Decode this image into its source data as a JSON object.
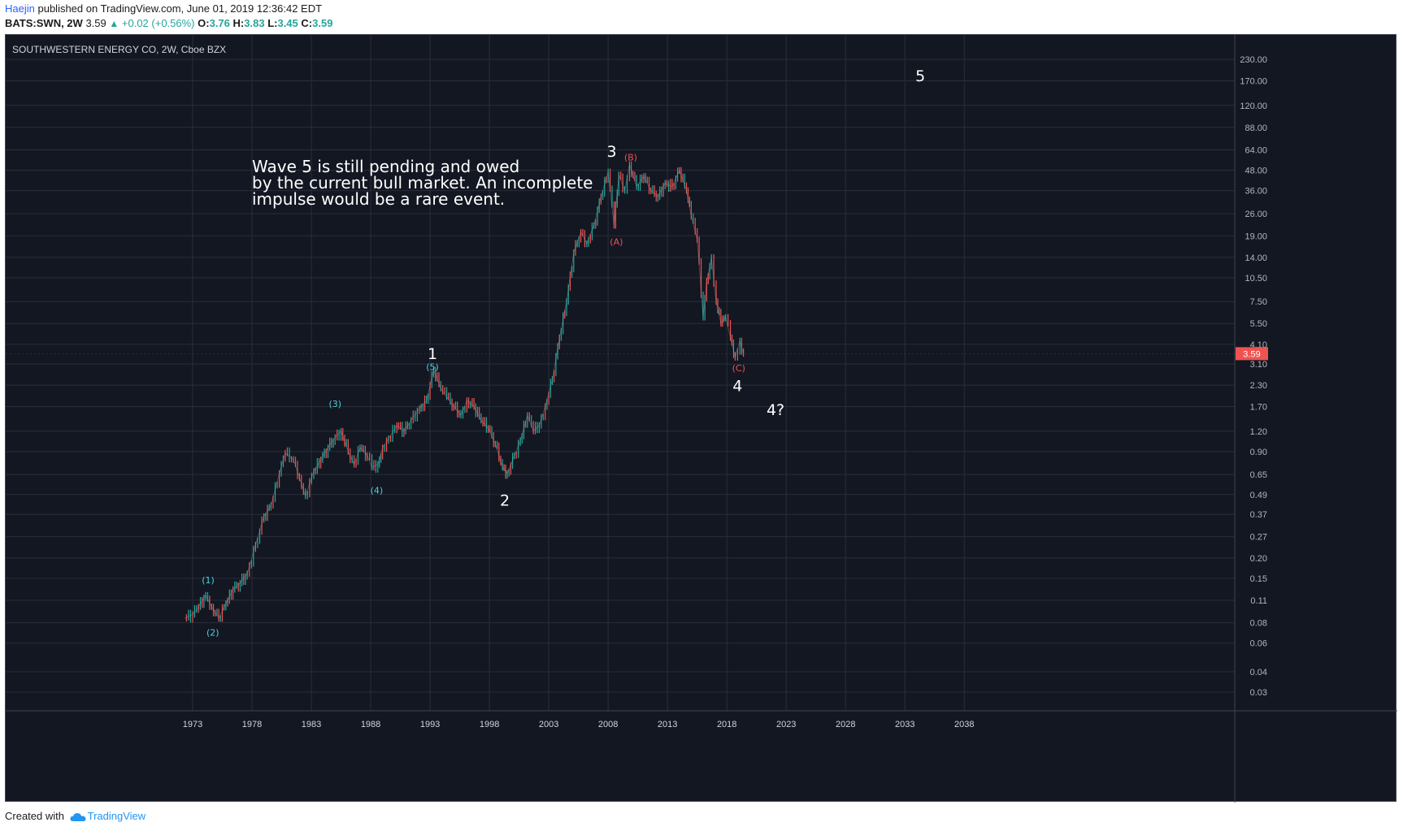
{
  "header": {
    "author": "Haejin",
    "published_text": "published on TradingView.com, June 01, 2019 12:36:42 EDT",
    "symbol": "BATS:SWN, 2W",
    "last": "3.59",
    "change": "+0.02 (+0.56%)",
    "o_label": "O:",
    "o_value": "3.76",
    "h_label": "H:",
    "h_value": "3.83",
    "l_label": "L:",
    "l_value": "3.45",
    "c_label": "C:",
    "c_value": "3.59"
  },
  "chart_title": "SOUTHWESTERN ENERGY CO, 2W, Cboe BZX",
  "footer": {
    "created_with": "Created with",
    "brand": "TradingView"
  },
  "colors": {
    "background": "#131722",
    "grid": "#2a2e39",
    "axis_text": "#b2b5be",
    "candle_up": "#26a69a",
    "candle_down": "#ef5350",
    "price_label_bg": "#ef5350",
    "wave_white": "#ffffff",
    "wave_cyan": "#4dd0e1",
    "wave_red": "#ef5350"
  },
  "chart_data": {
    "type": "line",
    "title": "SOUTHWESTERN ENERGY CO, 2W, Cboe BZX",
    "y_scale": "log",
    "ylim": [
      0.025,
      260
    ],
    "xlim": [
      1969.6,
      2056.6
    ],
    "x_ticks": [
      "1973",
      "1978",
      "1983",
      "1988",
      "1993",
      "1998",
      "2003",
      "2008",
      "2013",
      "2018",
      "2023",
      "2028",
      "2033",
      "2038"
    ],
    "y_ticks": [
      "230.00",
      "170.00",
      "120.00",
      "88.00",
      "64.00",
      "48.00",
      "36.00",
      "26.00",
      "19.00",
      "14.00",
      "10.50",
      "7.50",
      "5.50",
      "4.10",
      "3.10",
      "2.30",
      "1.70",
      "1.20",
      "0.90",
      "0.65",
      "0.49",
      "0.37",
      "0.27",
      "0.20",
      "0.15",
      "0.11",
      "0.08",
      "0.06",
      "0.04",
      "0.03"
    ],
    "last_price": "3.59",
    "series": [
      {
        "name": "",
        "x": [
          1972.3,
          1973.0,
          1973.5,
          1974.1,
          1974.6,
          1975.2,
          1975.8,
          1976.4,
          1977.0,
          1977.6,
          1978.3,
          1979.0,
          1979.6,
          1980.3,
          1980.8,
          1981.5,
          1982.0,
          1982.5,
          1983.2,
          1983.8,
          1984.4,
          1985.0,
          1985.5,
          1986.1,
          1986.6,
          1987.1,
          1987.7,
          1988.1,
          1988.6,
          1989.0,
          1989.5,
          1990.2,
          1990.8,
          1991.4,
          1992.1,
          1992.7,
          1993.3,
          1993.9,
          1994.4,
          1995.0,
          1995.6,
          1996.1,
          1996.7,
          1997.3,
          1997.9,
          1998.5,
          1999.1,
          1999.5,
          2000.1,
          2000.6,
          2001.2,
          2001.7,
          2002.2,
          2002.7,
          2003.3,
          2003.9,
          2004.5,
          2005.1,
          2005.7,
          2006.2,
          2006.8,
          2007.4,
          2008.0,
          2008.5,
          2008.9,
          2009.4,
          2009.8,
          2010.4,
          2011.0,
          2011.6,
          2012.2,
          2012.8,
          2013.4,
          2014.0,
          2014.6,
          2015.0,
          2015.5,
          2016.0,
          2016.3,
          2016.7,
          2017.1,
          2017.5,
          2017.9,
          2018.3,
          2018.7,
          2019.1,
          2019.4
        ],
        "values": [
          0.085,
          0.09,
          0.1,
          0.118,
          0.1,
          0.085,
          0.105,
          0.128,
          0.14,
          0.16,
          0.24,
          0.36,
          0.42,
          0.66,
          0.88,
          0.8,
          0.62,
          0.48,
          0.68,
          0.8,
          0.95,
          1.1,
          1.2,
          0.9,
          0.75,
          0.95,
          0.85,
          0.72,
          0.75,
          0.95,
          1.08,
          1.3,
          1.2,
          1.4,
          1.65,
          1.85,
          2.85,
          2.2,
          1.95,
          1.7,
          1.5,
          1.85,
          1.7,
          1.4,
          1.25,
          1.0,
          0.72,
          0.66,
          0.85,
          1.05,
          1.5,
          1.2,
          1.3,
          1.7,
          2.5,
          4.5,
          7.5,
          15,
          20,
          17,
          22,
          33,
          47,
          22,
          45,
          36,
          52,
          38,
          44,
          36,
          33,
          40,
          38,
          48,
          36,
          25,
          18,
          6.0,
          10,
          14,
          7.5,
          5.5,
          6.0,
          4.5,
          3.4,
          4.3,
          3.59
        ]
      }
    ],
    "annotations": [
      {
        "text": "(1)",
        "x": 1974.3,
        "y": 0.145,
        "color": "cyan"
      },
      {
        "text": "(2)",
        "x": 1974.7,
        "y": 0.069,
        "color": "cyan"
      },
      {
        "text": "(3)",
        "x": 1985.0,
        "y": 1.75,
        "color": "cyan"
      },
      {
        "text": "(4)",
        "x": 1988.5,
        "y": 0.515,
        "color": "cyan"
      },
      {
        "text": "(5)",
        "x": 1993.2,
        "y": 2.95,
        "color": "cyan"
      },
      {
        "text": "1",
        "x": 1993.2,
        "y": 3.55,
        "color": "white"
      },
      {
        "text": "2",
        "x": 1999.3,
        "y": 0.445,
        "color": "white"
      },
      {
        "text": "3",
        "x": 2008.3,
        "y": 62,
        "color": "white"
      },
      {
        "text": "(A)",
        "x": 2008.7,
        "y": 17.3,
        "color": "red"
      },
      {
        "text": "(B)",
        "x": 2009.9,
        "y": 57,
        "color": "red"
      },
      {
        "text": "(C)",
        "x": 2019.0,
        "y": 2.9,
        "color": "red"
      },
      {
        "text": "4",
        "x": 2018.9,
        "y": 2.25,
        "color": "white"
      },
      {
        "text": "4?",
        "x": 2022.1,
        "y": 1.6,
        "color": "white"
      },
      {
        "text": "5",
        "x": 2034.3,
        "y": 180,
        "color": "white"
      }
    ],
    "note": "Wave 5 is still pending and owed by the current bull market. An incomplete impulse would be a rare event."
  }
}
